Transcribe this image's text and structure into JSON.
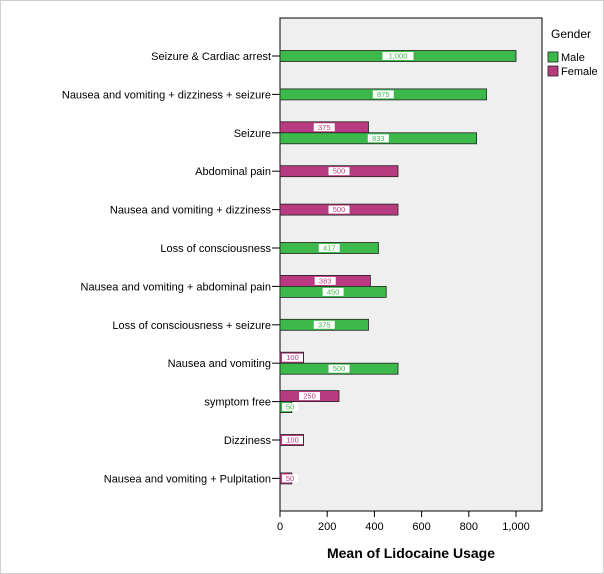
{
  "chart_data": {
    "type": "bar",
    "orientation": "horizontal",
    "title": "",
    "xlabel": "Mean of Lidocaine Usage",
    "ylabel": "",
    "xlim": [
      0,
      1100
    ],
    "x_ticks": [
      0,
      200,
      400,
      600,
      800,
      1000
    ],
    "x_tick_labels": [
      "0",
      "200",
      "400",
      "600",
      "800",
      "1,000"
    ],
    "grid": false,
    "legend": {
      "title": "Gender",
      "placement": "top-right outside plot"
    },
    "categories": [
      "Seizure & Cardiac arrest",
      "Nausea and vomiting + dizziness + seizure",
      "Seizure",
      "Abdominal pain",
      "Nausea and vomiting + dizziness",
      "Loss of consciousness",
      "Nausea and vomiting  + abdominal pain",
      "Loss of consciousness + seizure",
      "Nausea and vomiting",
      "symptom free",
      "Dizziness",
      "Nausea and vomiting + Pulpitation"
    ],
    "series": [
      {
        "name": "Male",
        "color": "#3cb94a",
        "values": [
          1000,
          875,
          833,
          null,
          null,
          417,
          450,
          375,
          500,
          50,
          null,
          null
        ],
        "value_labels": [
          "1,000",
          "875",
          "833",
          null,
          null,
          "417",
          "450",
          "375",
          "500",
          "50",
          null,
          null
        ]
      },
      {
        "name": "Female",
        "color": "#b83a80",
        "values": [
          null,
          null,
          375,
          500,
          500,
          null,
          383,
          null,
          100,
          250,
          100,
          50
        ],
        "value_labels": [
          null,
          null,
          "375",
          "500",
          "500",
          null,
          "383",
          null,
          "100",
          "250",
          "100",
          "50"
        ]
      }
    ]
  }
}
